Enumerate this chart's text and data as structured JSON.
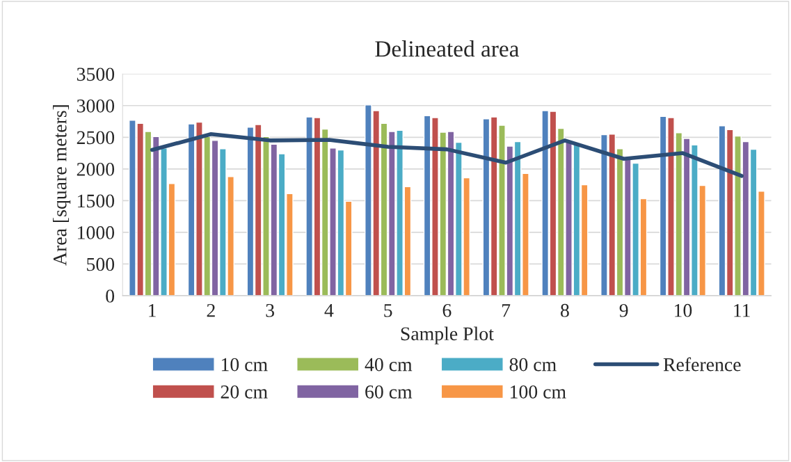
{
  "chart_data": {
    "type": "bar",
    "title": "Delineated area",
    "xlabel": "Sample Plot",
    "ylabel": "Area [square meters]",
    "categories": [
      "1",
      "2",
      "3",
      "4",
      "5",
      "6",
      "7",
      "8",
      "9",
      "10",
      "11"
    ],
    "series": [
      {
        "name": "10 cm",
        "color": "#4f81bd",
        "values": [
          2770,
          2710,
          2660,
          2820,
          3010,
          2840,
          2790,
          2920,
          2540,
          2830,
          2680
        ]
      },
      {
        "name": "20 cm",
        "color": "#c0504d",
        "values": [
          2720,
          2740,
          2700,
          2810,
          2920,
          2810,
          2820,
          2910,
          2550,
          2810,
          2620
        ]
      },
      {
        "name": "40 cm",
        "color": "#9bbb59",
        "values": [
          2590,
          2510,
          2510,
          2630,
          2720,
          2580,
          2690,
          2640,
          2320,
          2570,
          2520
        ]
      },
      {
        "name": "60 cm",
        "color": "#8064a2",
        "values": [
          2510,
          2450,
          2390,
          2330,
          2590,
          2590,
          2360,
          2430,
          2170,
          2480,
          2430
        ]
      },
      {
        "name": "80 cm",
        "color": "#4bacc6",
        "values": [
          2330,
          2320,
          2240,
          2300,
          2610,
          2420,
          2430,
          2410,
          2090,
          2380,
          2310
        ]
      },
      {
        "name": "100 cm",
        "color": "#f79646",
        "values": [
          1770,
          1880,
          1610,
          1490,
          1720,
          1860,
          1930,
          1750,
          1530,
          1740,
          1650
        ]
      },
      {
        "name": "Reference",
        "type": "line",
        "color": "#2c4d75",
        "values": [
          2300,
          2550,
          2450,
          2460,
          2350,
          2310,
          2100,
          2450,
          2160,
          2250,
          1890
        ]
      }
    ],
    "ylim": [
      0,
      3500
    ],
    "yticks": [
      0,
      500,
      1000,
      1500,
      2000,
      2500,
      3000,
      3500
    ],
    "grid": "y",
    "legend": "bottom"
  }
}
